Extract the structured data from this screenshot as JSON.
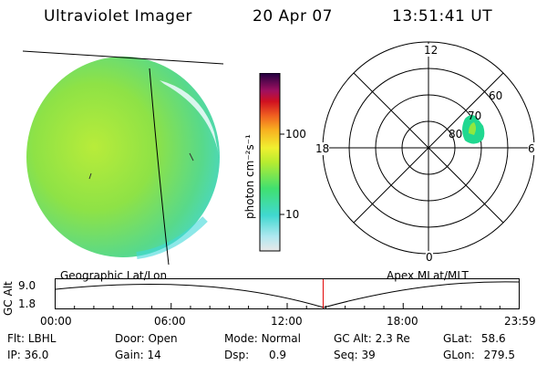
{
  "header": {
    "instrument": "Ultraviolet Imager",
    "date": "20 Apr 07",
    "time": "13:51:41 UT"
  },
  "colorbar": {
    "unit_label": "photon cm⁻²s⁻¹",
    "ticks": [
      "100",
      "10"
    ]
  },
  "polar_plot": {
    "mlt_labels": {
      "top": "12",
      "left": "18",
      "right": "6",
      "bottom": "0"
    },
    "lat_labels": [
      "60",
      "70",
      "80"
    ]
  },
  "timeline": {
    "axis_label": "GC Alt",
    "y_ticks": [
      "9.0",
      "1.8"
    ],
    "left_title": "Geographic Lat/Lon",
    "right_title": "Apex MLat/MLT",
    "x_ticks": [
      "00:00",
      "06:00",
      "12:00",
      "18:00",
      "23:59"
    ],
    "current_time_hours": 13.86
  },
  "info": {
    "row1": [
      {
        "label": "Flt:",
        "value": "LBHL"
      },
      {
        "label": "Door:",
        "value": "Open"
      },
      {
        "label": "Mode:",
        "value": "Normal"
      },
      {
        "label": "GC Alt:",
        "value": "2.3 Re"
      },
      {
        "label": "GLat:",
        "value": "58.6"
      }
    ],
    "row2": [
      {
        "label": "IP:",
        "value": "36.0"
      },
      {
        "label": "Gain:",
        "value": "14"
      },
      {
        "label": "Dsp:",
        "value": "0.9"
      },
      {
        "label": "Seq:",
        "value": "39"
      },
      {
        "label": "GLon:",
        "value": "279.5"
      }
    ]
  },
  "colors": {
    "disk_fill": "#7fe04a",
    "disk_edge": "#40d8d0",
    "aurora": "#20d890",
    "marker": "#e00000"
  }
}
